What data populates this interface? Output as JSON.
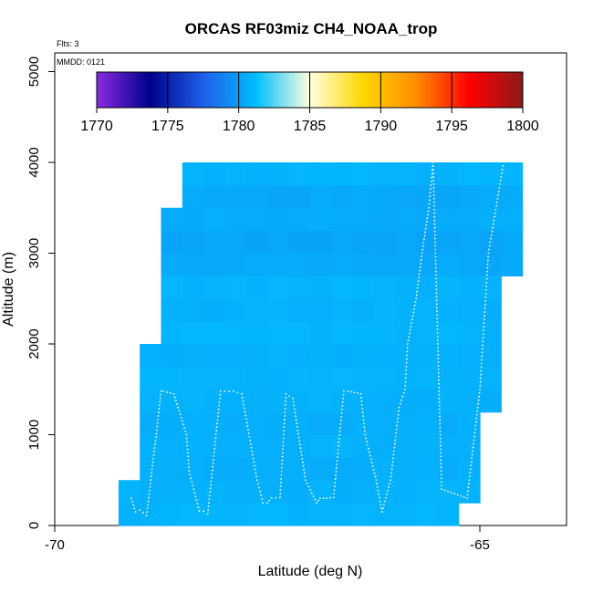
{
  "chart_data": {
    "type": "heatmap",
    "title": "ORCAS RF03miz CH4_NOAA_trop",
    "xlabel": "Latitude (deg N)",
    "ylabel": "Altitude (m)",
    "xlim": [
      -70,
      -64
    ],
    "ylim": [
      0,
      5200
    ],
    "x_ticks": [
      -70,
      -65
    ],
    "x_tick_labels": [
      "-70",
      "-65"
    ],
    "y_ticks": [
      0,
      1000,
      2000,
      3000,
      4000,
      5000
    ],
    "y_tick_labels": [
      "0",
      "1000",
      "2000",
      "3000",
      "4000",
      "5000"
    ],
    "flights_note": "Flts: 3",
    "date_note": "MMDD: 0121",
    "colorbar": {
      "range": [
        1770,
        1800
      ],
      "ticks": [
        1770,
        1775,
        1780,
        1785,
        1790,
        1795,
        1800
      ],
      "tick_labels": [
        "1770",
        "1775",
        "1780",
        "1785",
        "1790",
        "1795",
        "1800"
      ],
      "colors": [
        "#8a2be2",
        "#00008b",
        "#1e5fe8",
        "#00bfff",
        "#ffffe0",
        "#ffd700",
        "#ff8c00",
        "#ff0000",
        "#8b1a1a"
      ]
    },
    "cell_size": {
      "lat": 0.25,
      "alt": 250
    },
    "cell_value_typical": 1780.8,
    "region_columns": [
      {
        "lat_from": -69.25,
        "lat_to": -69.0,
        "alt_max": 500
      },
      {
        "lat_from": -69.0,
        "lat_to": -68.75,
        "alt_max": 2000
      },
      {
        "lat_from": -68.75,
        "lat_to": -68.5,
        "alt_max": 3500
      },
      {
        "lat_from": -68.5,
        "lat_to": -65.25,
        "alt_max": 4000
      },
      {
        "lat_from": -65.25,
        "lat_to": -65.0,
        "alt_max": 4000
      },
      {
        "lat_from": -65.0,
        "lat_to": -64.75,
        "alt_max": 4000
      },
      {
        "lat_from": -64.75,
        "lat_to": -64.5,
        "alt_max": 4000
      }
    ],
    "region_bottoms": [
      {
        "lat_from": -65.25,
        "lat_to": -65.0,
        "alt_min": 250
      },
      {
        "lat_from": -65.0,
        "lat_to": -64.75,
        "alt_min": 1250
      },
      {
        "lat_from": -64.75,
        "lat_to": -64.5,
        "alt_min": 2750
      }
    ],
    "row_values": [
      {
        "alt_from": 0,
        "alt_to": 250,
        "value": 1780.8
      },
      {
        "alt_from": 250,
        "alt_to": 500,
        "value": 1780.7
      },
      {
        "alt_from": 500,
        "alt_to": 750,
        "value": 1780.6
      },
      {
        "alt_from": 750,
        "alt_to": 1000,
        "value": 1780.7
      },
      {
        "alt_from": 1000,
        "alt_to": 1250,
        "value": 1780.6
      },
      {
        "alt_from": 1250,
        "alt_to": 1500,
        "value": 1780.7
      },
      {
        "alt_from": 1500,
        "alt_to": 1750,
        "value": 1780.8
      },
      {
        "alt_from": 1750,
        "alt_to": 2000,
        "value": 1780.7
      },
      {
        "alt_from": 2000,
        "alt_to": 2250,
        "value": 1780.8
      },
      {
        "alt_from": 2250,
        "alt_to": 2500,
        "value": 1780.7
      },
      {
        "alt_from": 2500,
        "alt_to": 2750,
        "value": 1780.8
      },
      {
        "alt_from": 2750,
        "alt_to": 3000,
        "value": 1780.4
      },
      {
        "alt_from": 3000,
        "alt_to": 3250,
        "value": 1780.3
      },
      {
        "alt_from": 3250,
        "alt_to": 3500,
        "value": 1780.5
      },
      {
        "alt_from": 3500,
        "alt_to": 3750,
        "value": 1780.4
      },
      {
        "alt_from": 3750,
        "alt_to": 4000,
        "value": 1780.8
      }
    ],
    "flight_track": {
      "lat": [
        -69.1,
        -69.05,
        -69.0,
        -68.92,
        -68.8,
        -68.75,
        -68.72,
        -68.6,
        -68.45,
        -68.42,
        -68.3,
        -68.25,
        -68.2,
        -68.05,
        -67.9,
        -67.8,
        -67.62,
        -67.55,
        -67.5,
        -67.45,
        -67.35,
        -67.28,
        -67.2,
        -67.05,
        -66.92,
        -66.88,
        -66.8,
        -66.72,
        -66.6,
        -66.55,
        -66.4,
        -66.35,
        -66.22,
        -66.15,
        -66.05,
        -65.95,
        -65.88,
        -65.85,
        -65.75,
        -65.68,
        -65.6,
        -65.55,
        -65.45,
        -65.3,
        -65.15,
        -65.0,
        -64.9,
        -64.72
      ],
      "alt": [
        300,
        150,
        170,
        110,
        1050,
        1480,
        1480,
        1450,
        1000,
        600,
        160,
        160,
        130,
        1480,
        1480,
        1450,
        500,
        250,
        250,
        300,
        310,
        1450,
        1400,
        500,
        250,
        300,
        300,
        310,
        1480,
        1480,
        1450,
        1000,
        500,
        150,
        500,
        1300,
        1500,
        2000,
        2500,
        3000,
        3500,
        4000,
        400,
        350,
        300,
        1500,
        3000,
        4000
      ]
    }
  }
}
